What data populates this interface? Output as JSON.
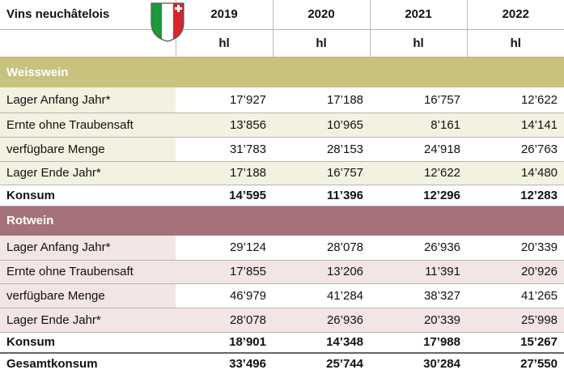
{
  "header": {
    "title": "Vins neuchâtelois",
    "years": [
      "2019",
      "2020",
      "2021",
      "2022"
    ],
    "units": [
      "hl",
      "hl",
      "hl",
      "hl"
    ]
  },
  "sections": [
    {
      "name": "Weisswein",
      "rows": [
        {
          "label": "Lager Anfang Jahr*",
          "values": [
            "17’927",
            "17’188",
            "16’757",
            "12’622"
          ]
        },
        {
          "label": "Ernte ohne Traubensaft",
          "values": [
            "13’856",
            "10’965",
            "8’161",
            "14’141"
          ]
        },
        {
          "label": "verfügbare Menge",
          "values": [
            "31’783",
            "28’153",
            "24’918",
            "26’763"
          ]
        },
        {
          "label": "Lager Ende Jahr*",
          "values": [
            "17’188",
            "16’757",
            "12’622",
            "14’480"
          ]
        },
        {
          "label": "Konsum",
          "values": [
            "14’595",
            "11’396",
            "12’296",
            "12’283"
          ]
        }
      ]
    },
    {
      "name": "Rotwein",
      "rows": [
        {
          "label": "Lager Anfang Jahr*",
          "values": [
            "29’124",
            "28’078",
            "26’936",
            "20’339"
          ]
        },
        {
          "label": "Ernte ohne Traubensaft",
          "values": [
            "17’855",
            "13’206",
            "11’391",
            "20’926"
          ]
        },
        {
          "label": "verfügbare Menge",
          "values": [
            "46’979",
            "41’284",
            "38’327",
            "41’265"
          ]
        },
        {
          "label": "Lager Ende Jahr*",
          "values": [
            "28’078",
            "26’936",
            "20’339",
            "25’998"
          ]
        },
        {
          "label": "Konsum",
          "values": [
            "18’901",
            "14’348",
            "17’988",
            "15’267"
          ]
        }
      ]
    }
  ],
  "total": {
    "label": "Gesamtkonsum",
    "values": [
      "33’496",
      "25’744",
      "30’284",
      "27’550"
    ]
  }
}
